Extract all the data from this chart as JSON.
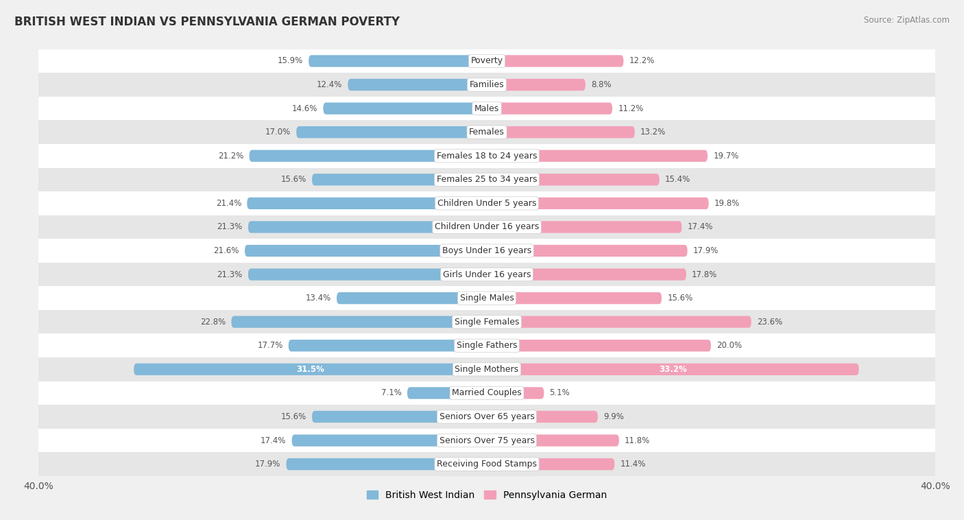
{
  "title": "BRITISH WEST INDIAN VS PENNSYLVANIA GERMAN POVERTY",
  "source": "Source: ZipAtlas.com",
  "categories": [
    "Poverty",
    "Families",
    "Males",
    "Females",
    "Females 18 to 24 years",
    "Females 25 to 34 years",
    "Children Under 5 years",
    "Children Under 16 years",
    "Boys Under 16 years",
    "Girls Under 16 years",
    "Single Males",
    "Single Females",
    "Single Fathers",
    "Single Mothers",
    "Married Couples",
    "Seniors Over 65 years",
    "Seniors Over 75 years",
    "Receiving Food Stamps"
  ],
  "left_values": [
    15.9,
    12.4,
    14.6,
    17.0,
    21.2,
    15.6,
    21.4,
    21.3,
    21.6,
    21.3,
    13.4,
    22.8,
    17.7,
    31.5,
    7.1,
    15.6,
    17.4,
    17.9
  ],
  "right_values": [
    12.2,
    8.8,
    11.2,
    13.2,
    19.7,
    15.4,
    19.8,
    17.4,
    17.9,
    17.8,
    15.6,
    23.6,
    20.0,
    33.2,
    5.1,
    9.9,
    11.8,
    11.4
  ],
  "left_color": "#82B8D9",
  "right_color": "#F2A0B8",
  "left_label": "British West Indian",
  "right_label": "Pennsylvania German",
  "axis_max": 40.0,
  "bg_color": "#f0f0f0",
  "row_bg_white": "#ffffff",
  "row_bg_gray": "#e6e6e6",
  "label_fontsize": 9.0,
  "value_fontsize": 8.5,
  "title_fontsize": 12,
  "bar_height": 0.5
}
